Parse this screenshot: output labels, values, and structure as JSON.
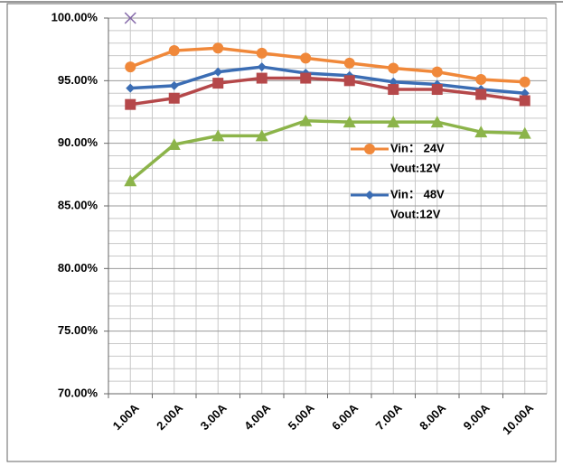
{
  "chart_data": {
    "type": "line",
    "categories": [
      "1.00A",
      "2.00A",
      "3.00A",
      "4.00A",
      "5.00A",
      "6.00A",
      "7.00A",
      "8.00A",
      "9.00A",
      "10.00A"
    ],
    "series": [
      {
        "name": [
          "Vin： 24V",
          "Vout:12V"
        ],
        "color": "#f0883a",
        "marker": "circle",
        "values": [
          96.1,
          97.4,
          97.6,
          97.2,
          96.8,
          96.4,
          96.0,
          95.7,
          95.1,
          94.9
        ]
      },
      {
        "name": [
          "Vin： 48V",
          "Vout:12V"
        ],
        "color": "#3b6db4",
        "marker": "diamond",
        "values": [
          94.4,
          94.6,
          95.7,
          96.1,
          95.6,
          95.4,
          94.9,
          94.7,
          94.3,
          94.0
        ]
      },
      {
        "color": "#b5484a",
        "marker": "square",
        "values": [
          93.1,
          93.6,
          94.8,
          95.2,
          95.2,
          95.0,
          94.3,
          94.3,
          93.9,
          93.4
        ]
      },
      {
        "color": "#8cb44a",
        "marker": "triangle",
        "values": [
          87.0,
          89.9,
          90.6,
          90.6,
          91.8,
          91.7,
          91.7,
          91.7,
          90.9,
          90.8
        ]
      },
      {
        "color": "#8366a8",
        "marker": "x",
        "values": [
          100,
          null,
          null,
          null,
          null,
          null,
          null,
          null,
          null,
          null
        ]
      }
    ],
    "ylim": [
      70,
      100
    ],
    "yticks": [
      {
        "value": 70,
        "label": "70.00%"
      },
      {
        "value": 75,
        "label": "75.00%"
      },
      {
        "value": 80,
        "label": "80.00%"
      },
      {
        "value": 85,
        "label": "85.00%"
      },
      {
        "value": 90,
        "label": "90.00%"
      },
      {
        "value": 95,
        "label": "95.00%"
      },
      {
        "value": 100,
        "label": "100.00%"
      }
    ],
    "y_minor_ticks": [
      71,
      72,
      73,
      74,
      76,
      77,
      78,
      79,
      81,
      82,
      83,
      84,
      86,
      87,
      88,
      89,
      91,
      92,
      93,
      94,
      96,
      97,
      98,
      99
    ],
    "grid": true
  }
}
